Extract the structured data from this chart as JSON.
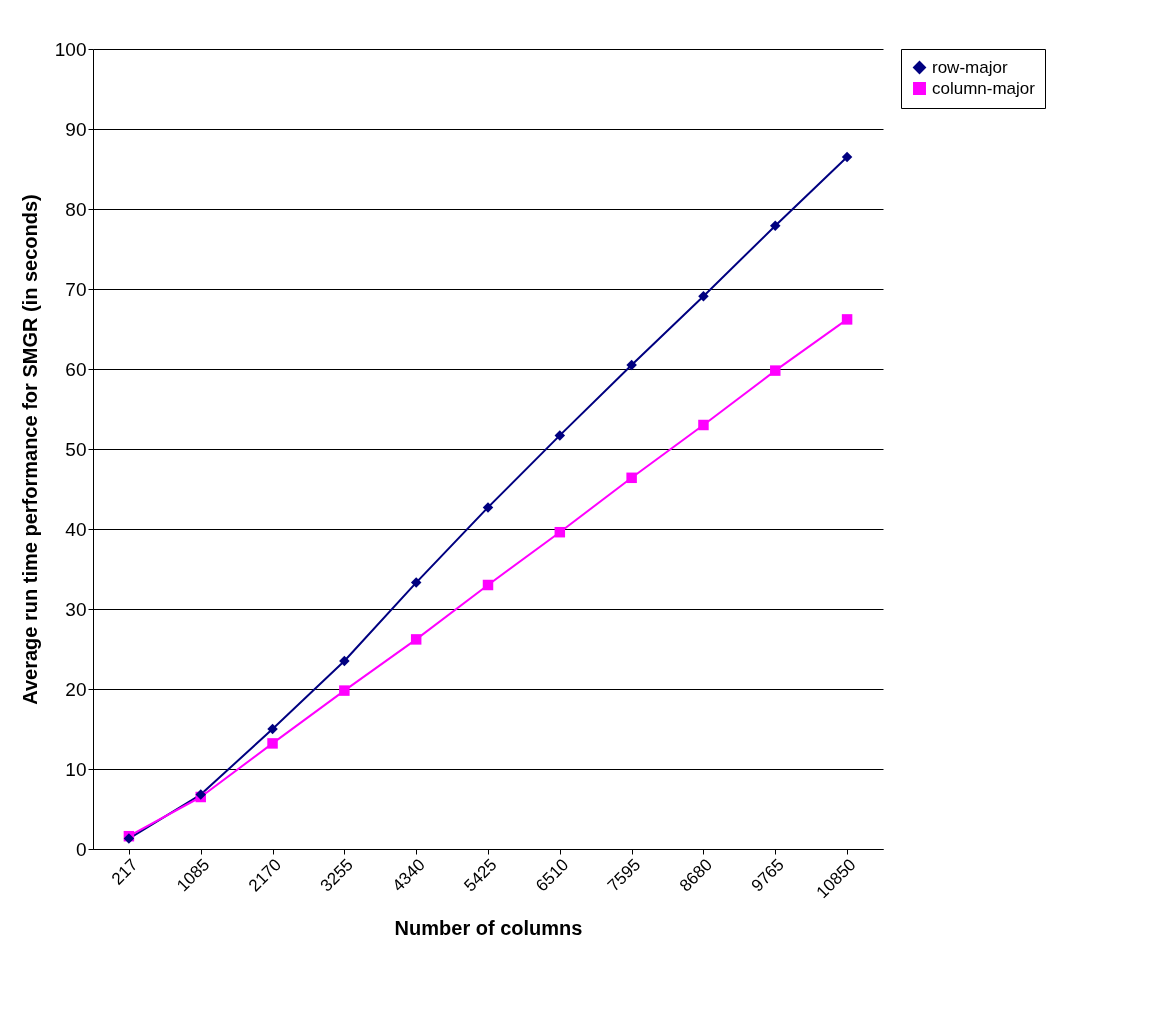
{
  "chart_data": {
    "type": "line",
    "xlabel": "Number of columns",
    "ylabel": "Average run time performance for SMGR (in seconds)",
    "categories": [
      "217",
      "1085",
      "2170",
      "3255",
      "4340",
      "5425",
      "6510",
      "7595",
      "8680",
      "9765",
      "10850"
    ],
    "series": [
      {
        "name": "row-major",
        "color": "#000080",
        "marker": "diamond",
        "values": [
          1.3,
          6.8,
          15,
          23.5,
          33.3,
          42.7,
          51.7,
          60.5,
          69.1,
          77.9,
          86.5
        ]
      },
      {
        "name": "column-major",
        "color": "#ff00ff",
        "marker": "square",
        "values": [
          1.6,
          6.5,
          13.2,
          19.8,
          26.2,
          33,
          39.6,
          46.4,
          53,
          59.8,
          66.2
        ]
      }
    ],
    "ylim": [
      0,
      100
    ],
    "yticks": [
      0,
      10,
      20,
      30,
      40,
      50,
      60,
      70,
      80,
      90,
      100
    ],
    "grid": "y",
    "legend": "right"
  }
}
